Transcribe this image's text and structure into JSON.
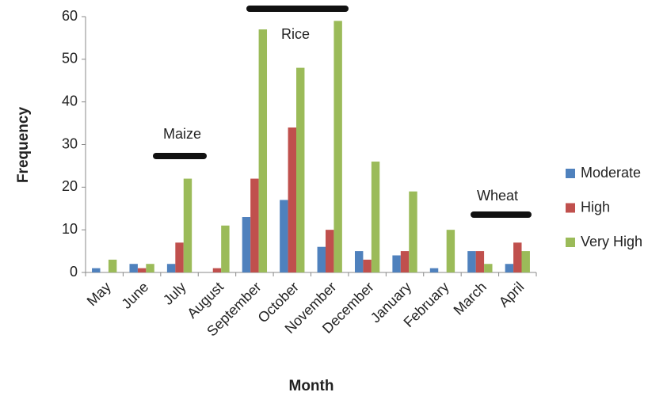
{
  "chart_data": {
    "type": "bar",
    "y_label": "Frequency",
    "x_label": "Month",
    "categories": [
      "May",
      "June",
      "July",
      "August",
      "September",
      "October",
      "November",
      "December",
      "January",
      "February",
      "March",
      "April"
    ],
    "series": [
      {
        "name": "Moderate",
        "color": "#4f81bd",
        "values": [
          1,
          2,
          2,
          0,
          13,
          17,
          6,
          5,
          4,
          1,
          5,
          2
        ]
      },
      {
        "name": "High",
        "color": "#c0504d",
        "values": [
          0,
          1,
          7,
          1,
          22,
          34,
          10,
          3,
          5,
          0,
          5,
          7
        ]
      },
      {
        "name": "Very High",
        "color": "#9bbb59",
        "values": [
          3,
          2,
          22,
          11,
          57,
          48,
          59,
          26,
          19,
          10,
          2,
          5
        ]
      }
    ],
    "ylim": [
      0,
      60
    ],
    "yticks": [
      0,
      10,
      20,
      30,
      40,
      50,
      60
    ],
    "annotations": [
      "Maize",
      "Rice",
      "Wheat"
    ],
    "legend": "right"
  }
}
